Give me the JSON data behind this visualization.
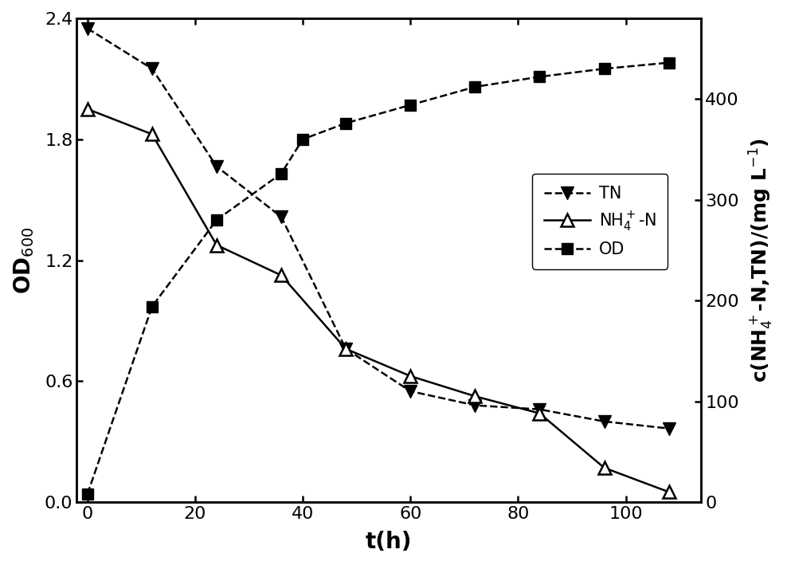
{
  "t_TN": [
    0,
    12,
    24,
    36,
    48,
    60,
    72,
    84,
    96,
    108
  ],
  "TN": [
    470,
    430,
    333,
    283,
    152,
    110,
    96,
    92,
    80,
    73
  ],
  "t_NH4": [
    0,
    12,
    24,
    36,
    48,
    60,
    72,
    84,
    96,
    108
  ],
  "NH4": [
    390,
    365,
    255,
    225,
    152,
    125,
    105,
    88,
    34,
    10
  ],
  "t_OD": [
    0,
    12,
    24,
    36,
    40,
    48,
    60,
    72,
    84,
    96,
    108
  ],
  "OD": [
    0.04,
    0.97,
    1.4,
    1.63,
    1.8,
    1.88,
    1.97,
    2.06,
    2.11,
    2.15,
    2.18
  ],
  "xlabel": "t(h)",
  "ylabel_left": "OD$_{600}$",
  "ylabel_right": "c(NH$_4^+$-N,TN)/(mg L$^{-1}$)",
  "xlim": [
    -2,
    114
  ],
  "ylim_left": [
    0.0,
    2.4
  ],
  "ylim_right": [
    0,
    480
  ],
  "yticks_left": [
    0.0,
    0.6,
    1.2,
    1.8,
    2.4
  ],
  "yticks_right": [
    0,
    100,
    200,
    300,
    400
  ],
  "xticks": [
    0,
    20,
    40,
    60,
    80,
    100
  ],
  "legend_TN": "TN",
  "legend_NH4": "NH$_4^+$-N",
  "legend_OD": "OD",
  "bg_color": "#ffffff",
  "line_color": "#000000"
}
